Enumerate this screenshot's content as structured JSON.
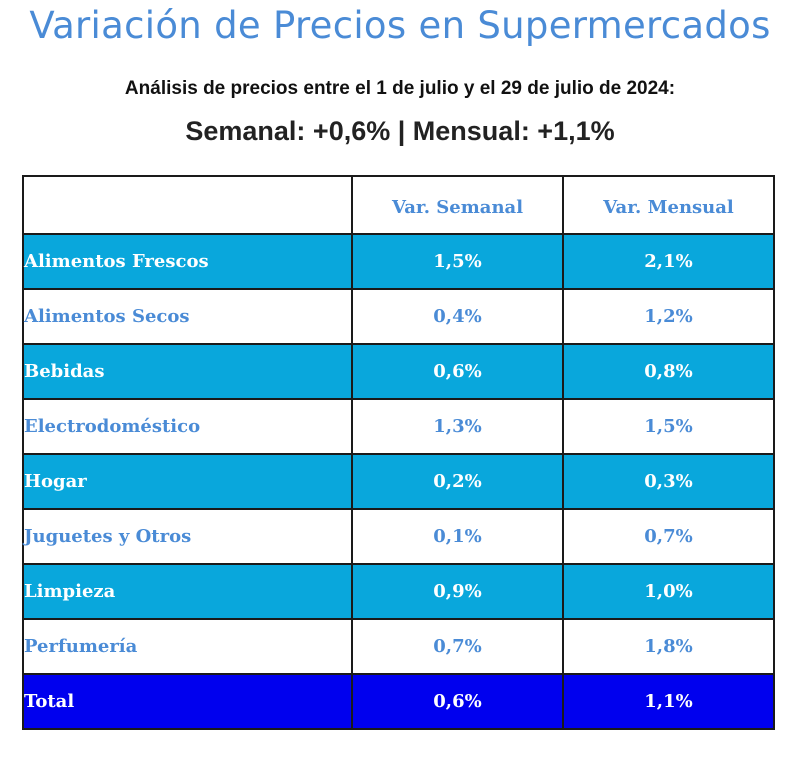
{
  "title": "Variación de Precios en Supermercados",
  "subtitle": "Análisis de precios entre el 1 de julio y el 29 de julio de 2024:",
  "summary": "Semanal: +0,6% | Mensual: +1,1%",
  "colors": {
    "title": "#4a8bd6",
    "row_highlight": "#09a7dc",
    "row_total": "#0000ee",
    "text_light": "#ffffff"
  },
  "chart_data": {
    "type": "table",
    "title": "Variación de Precios en Supermercados",
    "columns": [
      "",
      "Var. Semanal",
      "Var. Mensual"
    ],
    "rows": [
      {
        "category": "Alimentos Frescos",
        "semanal": "1,5%",
        "mensual": "2,1%",
        "style": "blue"
      },
      {
        "category": "Alimentos Secos",
        "semanal": "0,4%",
        "mensual": "1,2%",
        "style": "white"
      },
      {
        "category": "Bebidas",
        "semanal": "0,6%",
        "mensual": "0,8%",
        "style": "blue"
      },
      {
        "category": "Electrodoméstico",
        "semanal": "1,3%",
        "mensual": "1,5%",
        "style": "white"
      },
      {
        "category": "Hogar",
        "semanal": "0,2%",
        "mensual": "0,3%",
        "style": "blue"
      },
      {
        "category": "Juguetes y Otros",
        "semanal": "0,1%",
        "mensual": "0,7%",
        "style": "white"
      },
      {
        "category": "Limpieza",
        "semanal": "0,9%",
        "mensual": "1,0%",
        "style": "blue"
      },
      {
        "category": "Perfumería",
        "semanal": "0,7%",
        "mensual": "1,8%",
        "style": "white"
      },
      {
        "category": "Total",
        "semanal": "0,6%",
        "mensual": "1,1%",
        "style": "total"
      }
    ]
  }
}
